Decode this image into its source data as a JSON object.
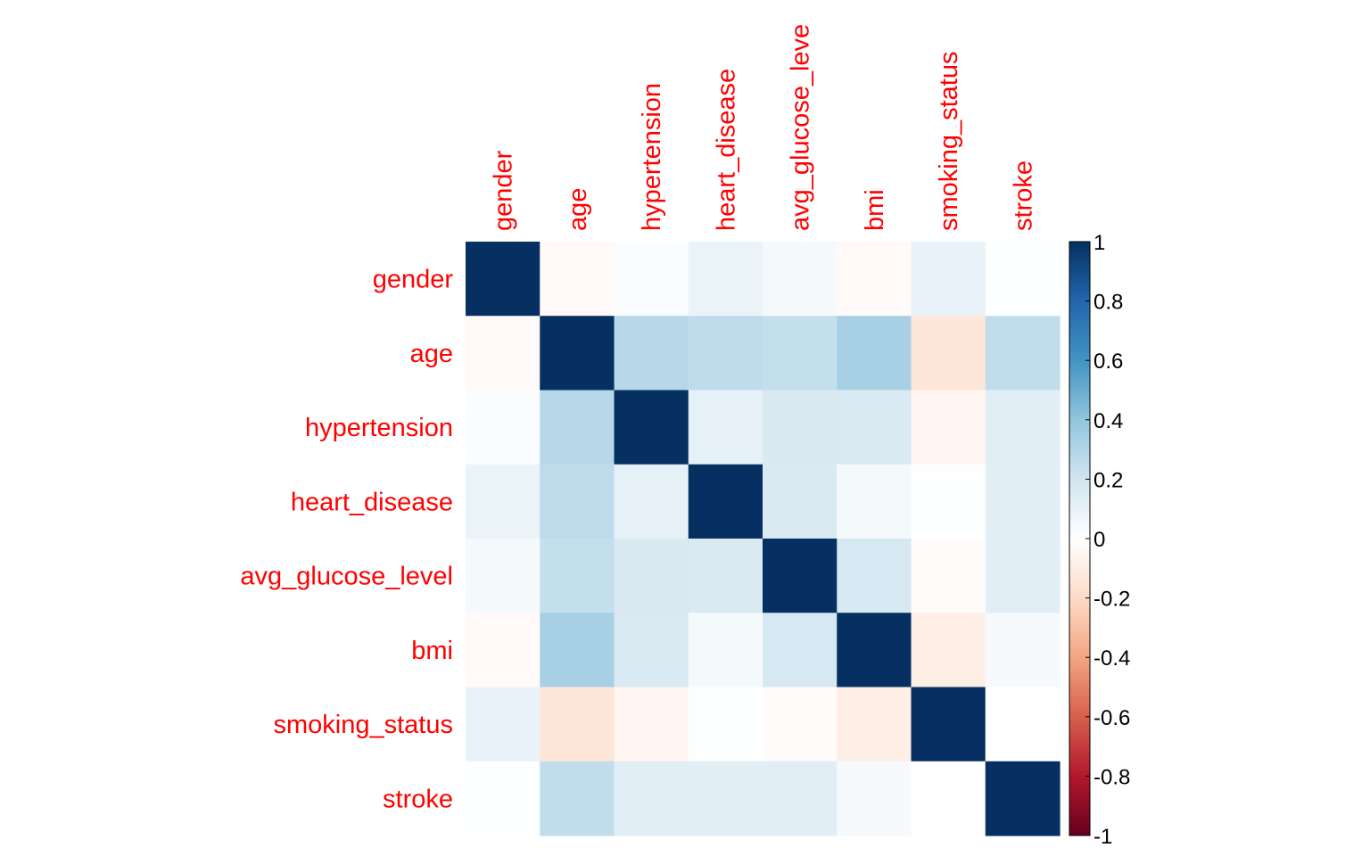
{
  "chart_data": {
    "type": "heatmap",
    "title": "",
    "variables": [
      "gender",
      "age",
      "hypertension",
      "heart_disease",
      "avg_glucose_leve",
      "bmi",
      "smoking_status",
      "stroke"
    ],
    "row_labels": [
      "gender",
      "age",
      "hypertension",
      "heart_disease",
      "avg_glucose_level",
      "bmi",
      "smoking_status",
      "stroke"
    ],
    "col_labels": [
      "gender",
      "age",
      "hypertension",
      "heart_disease",
      "avg_glucose_leve",
      "bmi",
      "smoking_status",
      "stroke"
    ],
    "matrix": [
      [
        1.0,
        -0.03,
        0.02,
        0.09,
        0.05,
        -0.03,
        0.1,
        0.01
      ],
      [
        -0.03,
        1.0,
        0.28,
        0.26,
        0.24,
        0.33,
        -0.14,
        0.25
      ],
      [
        0.02,
        0.28,
        1.0,
        0.11,
        0.17,
        0.16,
        -0.05,
        0.13
      ],
      [
        0.09,
        0.26,
        0.11,
        1.0,
        0.16,
        0.05,
        0.01,
        0.13
      ],
      [
        0.05,
        0.24,
        0.17,
        0.16,
        1.0,
        0.18,
        -0.02,
        0.13
      ],
      [
        -0.03,
        0.33,
        0.16,
        0.05,
        0.18,
        1.0,
        -0.09,
        0.04
      ],
      [
        0.1,
        -0.14,
        -0.05,
        0.01,
        -0.02,
        -0.09,
        1.0,
        0.0
      ],
      [
        0.01,
        0.25,
        0.13,
        0.13,
        0.13,
        0.04,
        0.0,
        1.0
      ]
    ],
    "color_scale": {
      "range": [
        -1,
        1
      ],
      "ticks": [
        "1",
        "0.8",
        "0.6",
        "0.4",
        "0.2",
        "0",
        "-0.2",
        "-0.4",
        "-0.6",
        "-0.8",
        "-1"
      ],
      "palette": [
        "#67001F",
        "#B2182B",
        "#D6604D",
        "#F4A582",
        "#FDDBC7",
        "#FFFFFF",
        "#D1E5F0",
        "#92C5DE",
        "#4393C3",
        "#2166AC",
        "#053061"
      ]
    },
    "label_color": "#FF0000",
    "legend": "right"
  }
}
